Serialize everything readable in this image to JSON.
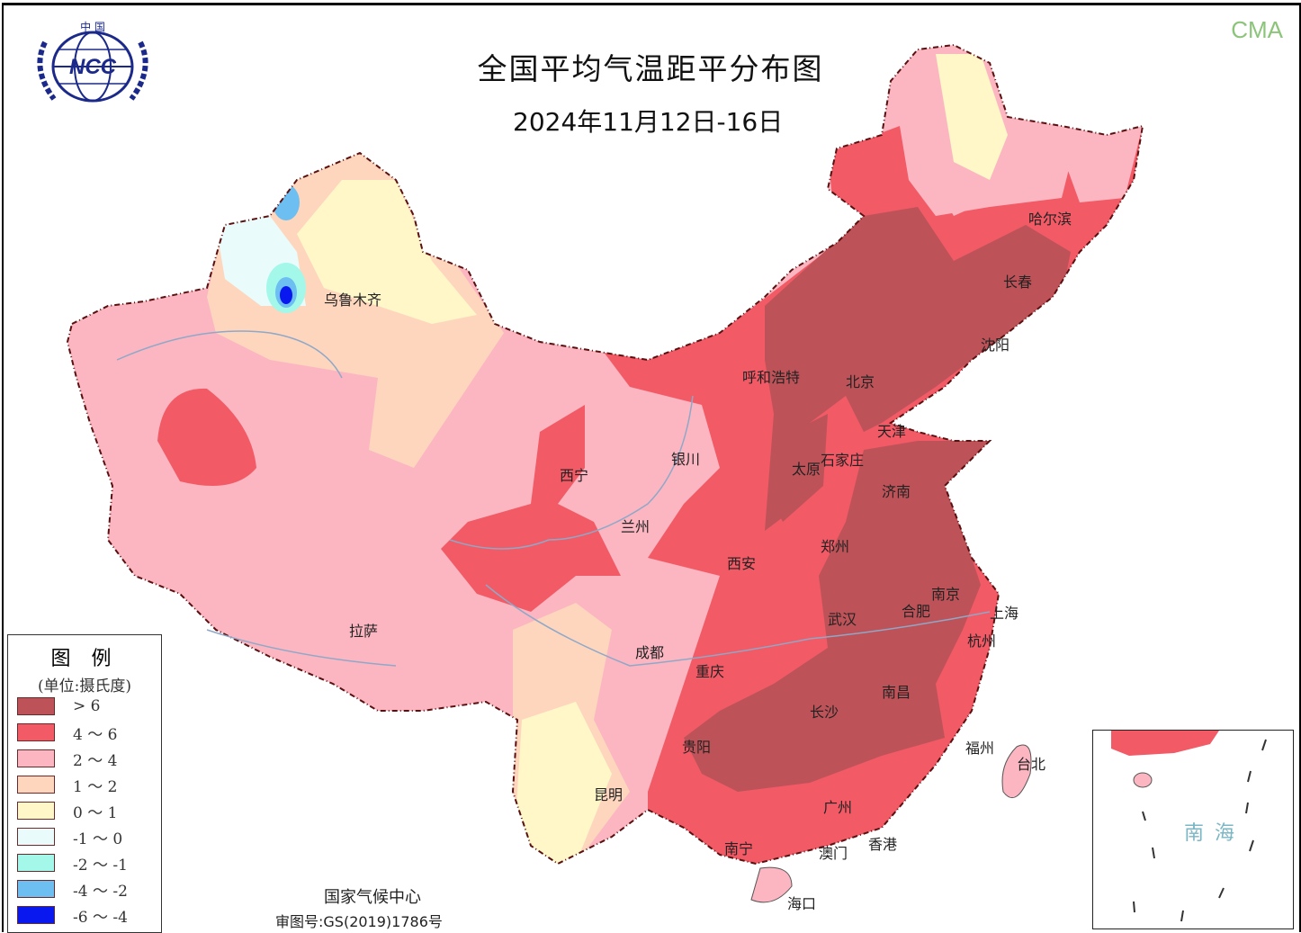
{
  "header": {
    "title": "全国平均气温距平分布图",
    "date_range": "2024年11月12日-16日",
    "brand": "CMA",
    "logo_text": "中国 NCC"
  },
  "legend": {
    "title": "图 例",
    "unit": "(单位:摄氏度)",
    "items": [
      {
        "label": "> 6",
        "color": "#bd5358"
      },
      {
        "label": "4 ～ 6",
        "color": "#f25a66"
      },
      {
        "label": "2 ～ 4",
        "color": "#fbb6c1"
      },
      {
        "label": "1 ～ 2",
        "color": "#fdd6bd"
      },
      {
        "label": "0 ～ 1",
        "color": "#fff7c8"
      },
      {
        "label": "-1 ～ 0",
        "color": "#e9fcfb"
      },
      {
        "label": "-2 ～ -1",
        "color": "#a4f8ea"
      },
      {
        "label": "-4 ～ -2",
        "color": "#6cbff0"
      },
      {
        "label": "-6 ～ -4",
        "color": "#0a18f0"
      }
    ]
  },
  "cities": [
    {
      "name": "哈尔滨"
    },
    {
      "name": "长春"
    },
    {
      "name": "沈阳"
    },
    {
      "name": "呼和浩特"
    },
    {
      "name": "北京"
    },
    {
      "name": "天津"
    },
    {
      "name": "石家庄"
    },
    {
      "name": "太原"
    },
    {
      "name": "济南"
    },
    {
      "name": "银川"
    },
    {
      "name": "西宁"
    },
    {
      "name": "兰州"
    },
    {
      "name": "乌鲁木齐"
    },
    {
      "name": "西安"
    },
    {
      "name": "郑州"
    },
    {
      "name": "南京"
    },
    {
      "name": "合肥"
    },
    {
      "name": "上海"
    },
    {
      "name": "杭州"
    },
    {
      "name": "武汉"
    },
    {
      "name": "成都"
    },
    {
      "name": "重庆"
    },
    {
      "name": "拉萨"
    },
    {
      "name": "南昌"
    },
    {
      "name": "长沙"
    },
    {
      "name": "贵阳"
    },
    {
      "name": "福州"
    },
    {
      "name": "台北"
    },
    {
      "name": "昆明"
    },
    {
      "name": "广州"
    },
    {
      "name": "南宁"
    },
    {
      "name": "香港"
    },
    {
      "name": "澳门"
    },
    {
      "name": "海口"
    }
  ],
  "inset": {
    "label": "南海"
  },
  "footer": {
    "credit": "国家气候中心",
    "approval": "审图号:GS(2019)1786号"
  }
}
